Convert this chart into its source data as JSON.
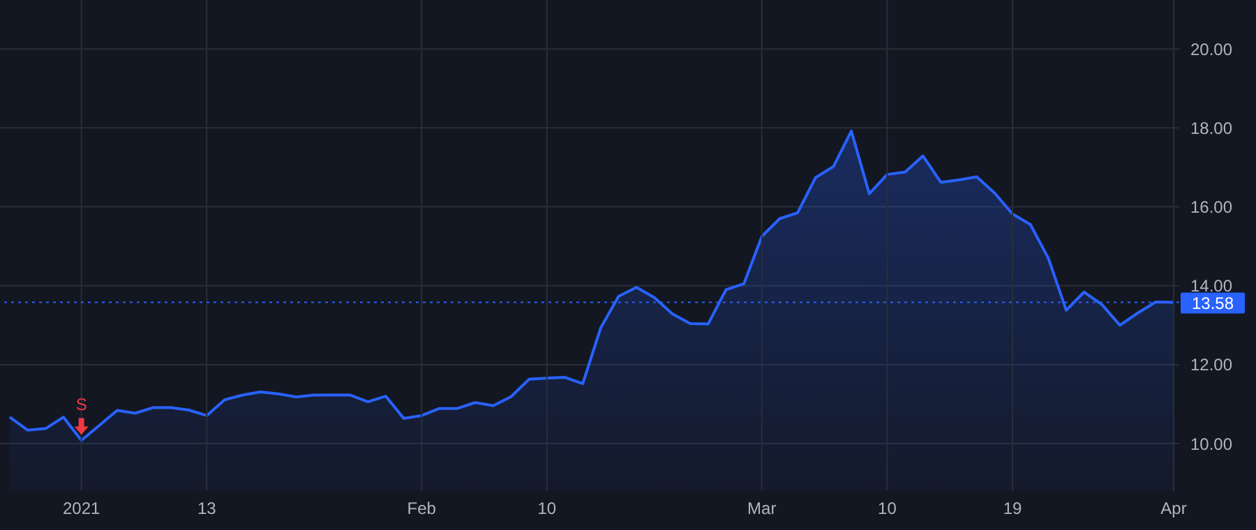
{
  "chart_data": {
    "type": "area",
    "categories": [
      null,
      null,
      null,
      null,
      "2021",
      null,
      null,
      null,
      null,
      null,
      null,
      "13",
      null,
      null,
      null,
      null,
      null,
      null,
      null,
      null,
      null,
      null,
      null,
      "Feb",
      null,
      null,
      null,
      null,
      null,
      null,
      "10",
      null,
      null,
      null,
      null,
      null,
      null,
      null,
      null,
      null,
      null,
      null,
      "Mar",
      null,
      null,
      null,
      null,
      null,
      null,
      "10",
      null,
      null,
      null,
      null,
      null,
      null,
      "19",
      null,
      null,
      null,
      null,
      null,
      null,
      null,
      null,
      "Apr"
    ],
    "series": [
      {
        "color": "#2962ff",
        "values": [
          10.67,
          10.34,
          10.38,
          10.67,
          10.08,
          10.46,
          10.84,
          10.77,
          10.91,
          10.91,
          10.85,
          10.71,
          11.11,
          11.23,
          11.31,
          11.26,
          11.18,
          11.23,
          11.23,
          11.23,
          11.06,
          11.2,
          10.64,
          10.71,
          10.89,
          10.89,
          11.04,
          10.96,
          11.19,
          11.63,
          11.66,
          11.68,
          11.52,
          12.93,
          13.73,
          13.96,
          13.7,
          13.29,
          13.04,
          13.03,
          13.9,
          14.05,
          15.25,
          15.7,
          15.85,
          16.74,
          17.02,
          17.92,
          16.33,
          16.82,
          16.88,
          17.29,
          16.62,
          16.68,
          16.76,
          16.35,
          15.82,
          15.55,
          14.7,
          13.38,
          13.84,
          13.52,
          13.0,
          13.31,
          13.59,
          13.58
        ]
      }
    ],
    "ylim": [
      8.8,
      21.24
    ],
    "yticks": [
      {
        "value": 10,
        "label": "10.00"
      },
      {
        "value": 12,
        "label": "12.00"
      },
      {
        "value": 14,
        "label": "14.00"
      },
      {
        "value": 16,
        "label": "16.00"
      },
      {
        "value": 18,
        "label": "18.00"
      },
      {
        "value": 20,
        "label": "20.00"
      }
    ],
    "grid": true,
    "ref_lines": [
      {
        "axis": "y",
        "value": 13.58,
        "label": "13.58",
        "color": "#2962ff",
        "line_style": "dotted"
      }
    ],
    "annotations": [
      {
        "text": "S",
        "x": "2021",
        "y": 10.08
      }
    ]
  }
}
